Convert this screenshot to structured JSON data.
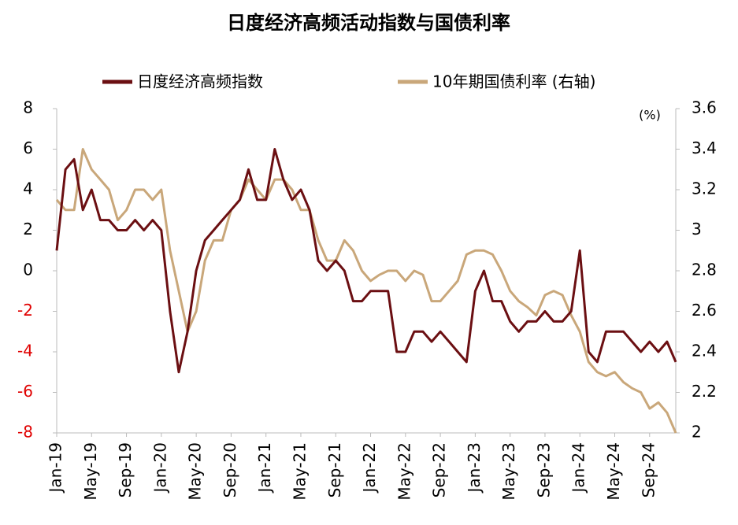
{
  "chart_data": {
    "type": "line",
    "title": "日度经济高频活动指数与国债利率",
    "y2_unit_label": "(%)",
    "categories": [
      "Jan-19",
      null,
      null,
      null,
      "May-19",
      null,
      null,
      null,
      "Sep-19",
      null,
      null,
      null,
      "Jan-20",
      null,
      null,
      null,
      "May-20",
      null,
      null,
      null,
      "Sep-20",
      null,
      null,
      null,
      "Jan-21",
      null,
      null,
      null,
      "May-21",
      null,
      null,
      null,
      "Sep-21",
      null,
      null,
      null,
      "Jan-22",
      null,
      null,
      null,
      "May-22",
      null,
      null,
      null,
      "Sep-22",
      null,
      null,
      null,
      "Jan-23",
      null,
      null,
      null,
      "May-23",
      null,
      null,
      null,
      "Sep-23",
      null,
      null,
      null,
      "Jan-24",
      null,
      null,
      null,
      "May-24",
      null,
      null,
      null,
      "Sep-24",
      null,
      null,
      null
    ],
    "series": [
      {
        "name": "日度经济高频指数",
        "color": "#6b0f12",
        "axis": "y",
        "values": [
          1,
          5,
          5.5,
          3,
          4,
          2.5,
          2.5,
          2,
          2,
          2.5,
          2,
          2.5,
          2,
          -2,
          -5,
          -3,
          0,
          1.5,
          2,
          2.5,
          3,
          3.5,
          5,
          3.5,
          3.5,
          6,
          4.5,
          3.5,
          4,
          3,
          0.5,
          0,
          0.5,
          0,
          -1.5,
          -1.5,
          -1,
          -1,
          -1,
          -4,
          -4,
          -3,
          -3,
          -3.5,
          -3,
          -3.5,
          -4,
          -4.5,
          -1,
          0,
          -1.5,
          -1.5,
          -2.5,
          -3,
          -2.5,
          -2.5,
          -2,
          -2.5,
          -2.5,
          -2,
          1,
          -4,
          -4.5,
          -3,
          -3,
          -3,
          -3.5,
          -4,
          -3.5,
          -4,
          -3.5,
          -4.5
        ]
      },
      {
        "name": "10年期国债利率 (右轴)",
        "color": "#c9a77a",
        "axis": "y2",
        "values": [
          3.15,
          3.1,
          3.1,
          3.4,
          3.3,
          3.25,
          3.2,
          3.05,
          3.1,
          3.2,
          3.2,
          3.15,
          3.2,
          2.9,
          2.7,
          2.5,
          2.6,
          2.85,
          2.95,
          2.95,
          3.1,
          3.15,
          3.25,
          3.2,
          3.15,
          3.25,
          3.25,
          3.2,
          3.1,
          3.1,
          2.95,
          2.85,
          2.85,
          2.95,
          2.9,
          2.8,
          2.75,
          2.78,
          2.8,
          2.8,
          2.75,
          2.8,
          2.78,
          2.65,
          2.65,
          2.7,
          2.75,
          2.88,
          2.9,
          2.9,
          2.88,
          2.8,
          2.7,
          2.65,
          2.62,
          2.58,
          2.68,
          2.7,
          2.68,
          2.58,
          2.5,
          2.35,
          2.3,
          2.28,
          2.3,
          2.25,
          2.22,
          2.2,
          2.12,
          2.15,
          2.1,
          2.0
        ]
      }
    ],
    "ylim": [
      -8,
      8
    ],
    "yticks": [
      -8,
      -6,
      -4,
      -2,
      0,
      2,
      4,
      6,
      8
    ],
    "y2lim": [
      2,
      3.6
    ],
    "y2ticks": [
      2,
      {
        "value": 2.2,
        "label": "2.2"
      },
      {
        "value": 2.4,
        "label": "2.4"
      },
      {
        "value": 2.6,
        "label": "2.6"
      },
      {
        "value": 2.8,
        "label": "2.8"
      },
      3,
      {
        "value": 3.2,
        "label": "3.2"
      },
      {
        "value": 3.4,
        "label": "3.4"
      },
      {
        "value": 3.6,
        "label": "3.6"
      }
    ],
    "negative_tick_color": "#e00000",
    "legend": "top"
  }
}
